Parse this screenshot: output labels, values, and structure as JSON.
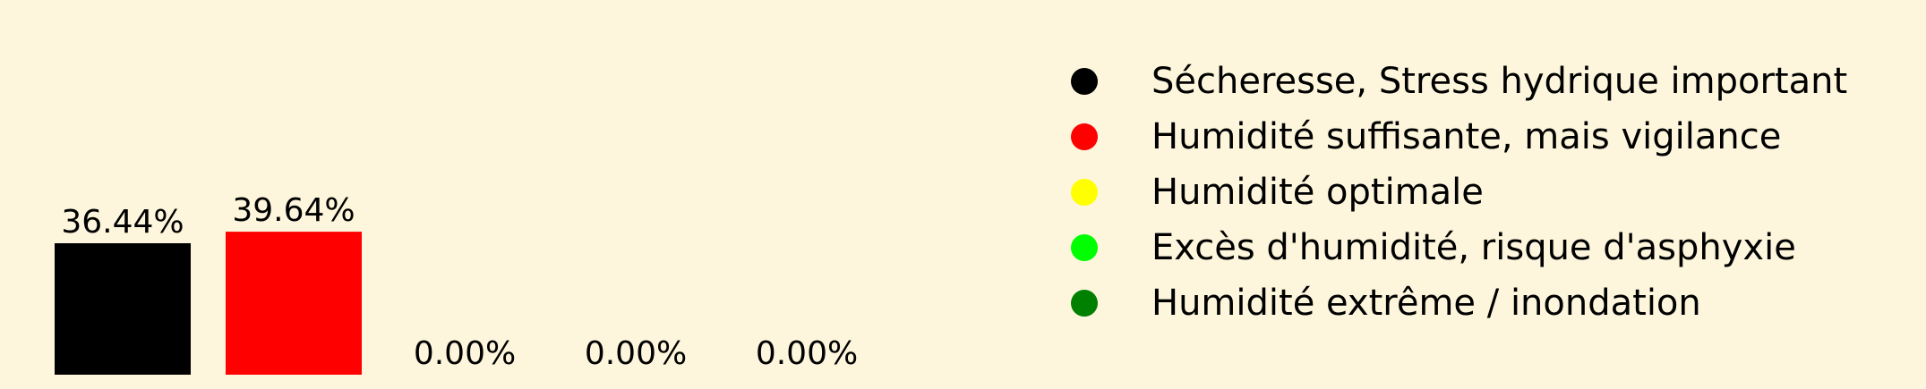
{
  "chart_data": {
    "type": "bar",
    "categories": [
      "Sécheresse, Stress hydrique important",
      "Humidité suffisante, mais vigilance",
      "Humidité optimale",
      "Excès d'humidité, risque d'asphyxie",
      "Humidité extrême / inondation"
    ],
    "values": [
      36.44,
      39.64,
      0.0,
      0.0,
      0.0
    ],
    "value_labels": [
      "36.44%",
      "39.64%",
      "0.00%",
      "0.00%",
      "0.00%"
    ],
    "colors": [
      "#000000",
      "#ff0000",
      "#ffff00",
      "#00ff00",
      "#008000"
    ],
    "legend": {
      "placement": "right",
      "entries": [
        {
          "label": "Sécheresse, Stress hydrique important",
          "color": "#000000"
        },
        {
          "label": "Humidité suffisante, mais vigilance",
          "color": "#ff0000"
        },
        {
          "label": "Humidité optimale",
          "color": "#ffff00"
        },
        {
          "label": "Excès d'humidité, risque d'asphyxie",
          "color": "#00ff00"
        },
        {
          "label": "Humidité extrême / inondation",
          "color": "#008000"
        }
      ]
    },
    "background": "#fdf6dc",
    "ylim": [
      0,
      100
    ],
    "grid": false,
    "axes_visible": false
  }
}
